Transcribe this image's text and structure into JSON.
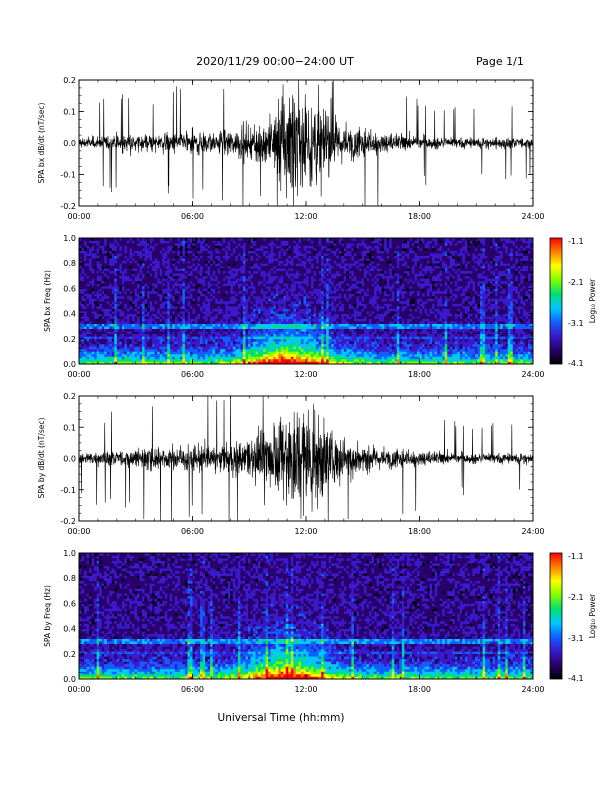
{
  "header": {
    "title": "2020/11/29  00:00−24:00 UT",
    "page": "Page 1/1"
  },
  "colors": {
    "colorbar": [
      "#000000",
      "#2a006a",
      "#3a1acc",
      "#1060ff",
      "#00c8ff",
      "#00e070",
      "#80ff00",
      "#ffff00",
      "#ff8000",
      "#ff0000"
    ]
  },
  "xaxis": {
    "label": "Universal Time (hh:mm)",
    "ticks": [
      "00:00",
      "06:00",
      "12:00",
      "18:00",
      "24:00"
    ]
  },
  "chart_data": [
    {
      "type": "line",
      "ylabel": "SPA bx dB/dt (nT/sec)",
      "xlim": [
        0,
        24
      ],
      "ylim": [
        -0.2,
        0.2
      ],
      "yticks": [
        "-0.2",
        "-0.1",
        "0.0",
        "0.1",
        "0.2"
      ],
      "series": [
        {
          "x": [
            0,
            2,
            4,
            6,
            8,
            10,
            11,
            12,
            14,
            16,
            18,
            20,
            22,
            24
          ],
          "amplitude": [
            0.02,
            0.03,
            0.03,
            0.04,
            0.04,
            0.09,
            0.2,
            0.2,
            0.07,
            0.04,
            0.025,
            0.02,
            0.02,
            0.02
          ]
        }
      ]
    },
    {
      "type": "heatmap",
      "ylabel": "SPA bx Freq (Hz)",
      "xlim": [
        0,
        24
      ],
      "ylim": [
        0,
        1.0
      ],
      "yticks": [
        "0.0",
        "0.2",
        "0.4",
        "0.6",
        "0.8",
        "1.0"
      ],
      "colorbar": {
        "label": "Log₁₀ Power",
        "ticks": [
          "-1.1",
          "-2.1",
          "-3.1",
          "-4.1"
        ]
      }
    },
    {
      "type": "line",
      "ylabel": "SPA by dB/dt (nT/sec)",
      "xlim": [
        0,
        24
      ],
      "ylim": [
        -0.2,
        0.2
      ],
      "yticks": [
        "-0.2",
        "-0.1",
        "0.0",
        "0.1",
        "0.2"
      ],
      "series": [
        {
          "x": [
            0,
            2,
            4,
            6,
            8,
            10,
            11,
            12,
            14,
            16,
            18,
            20,
            22,
            24
          ],
          "amplitude": [
            0.02,
            0.03,
            0.04,
            0.05,
            0.05,
            0.1,
            0.2,
            0.2,
            0.08,
            0.04,
            0.03,
            0.02,
            0.02,
            0.02
          ]
        }
      ]
    },
    {
      "type": "heatmap",
      "ylabel": "SPA by Freq (Hz)",
      "xlim": [
        0,
        24
      ],
      "ylim": [
        0,
        1.0
      ],
      "yticks": [
        "0.0",
        "0.2",
        "0.4",
        "0.6",
        "0.8",
        "1.0"
      ],
      "colorbar": {
        "label": "Log₁₀ Power",
        "ticks": [
          "-1.1",
          "-2.1",
          "-3.1",
          "-4.1"
        ]
      }
    }
  ]
}
